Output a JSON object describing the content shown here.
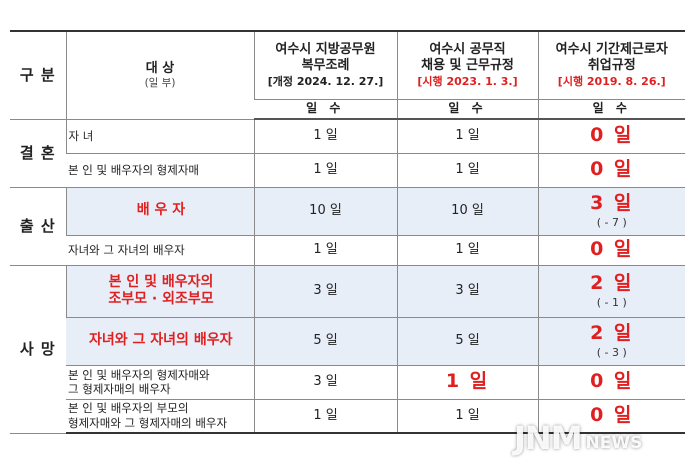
{
  "header": {
    "category_label": "구 분",
    "target_label": "대 상",
    "target_sub": "(일 부)",
    "col1": {
      "line1": "여수시 지방공무원",
      "line2": "복무조례",
      "bracket": "[개정 2024. 12. 27.]"
    },
    "col2": {
      "line1": "여수시 공무직",
      "line2": "채용 및 근무규정",
      "bracket": "[시행 2023. 1. 3.]"
    },
    "col3": {
      "line1": "여수시 기간제근로자",
      "line2": "취업규정",
      "bracket": "[시행 2019. 8. 26.]"
    },
    "days_label": "일 수"
  },
  "categories": {
    "marriage": "결 혼",
    "birth": "출 산",
    "death": "사 망"
  },
  "rows": [
    {
      "target": "자 녀",
      "c1": "1 일",
      "c2": "1 일",
      "c3": "0 일",
      "c3_change": ""
    },
    {
      "target": "본 인 및 배우자의 형제자매",
      "c1": "1 일",
      "c2": "1 일",
      "c3": "0 일",
      "c3_change": ""
    },
    {
      "target": "배 우 자",
      "c1": "10 일",
      "c2": "10 일",
      "c3": "3 일",
      "c3_change": "( - 7 )"
    },
    {
      "target": "자녀와 그 자녀의 배우자",
      "c1": "1 일",
      "c2": "1 일",
      "c3": "0 일",
      "c3_change": ""
    },
    {
      "target_line1": "본 인 및 배우자의",
      "target_line2": "조부모 · 외조부모",
      "c1": "3 일",
      "c2": "3 일",
      "c3": "2 일",
      "c3_change": "( - 1 )"
    },
    {
      "target": "자녀와 그 자녀의 배우자",
      "c1": "5 일",
      "c2": "5 일",
      "c3": "2 일",
      "c3_change": "( - 3 )"
    },
    {
      "target_line1": "본 인 및 배우자의 형제자매와",
      "target_line2": "그 형제자매의 배우자",
      "c1": "3 일",
      "c2": "1 일",
      "c3": "0 일",
      "c3_change": ""
    },
    {
      "target_line1": "본 인 및 배우자의 부모의",
      "target_line2": "형제자매와 그 형제자매의 배우자",
      "c1": "1 일",
      "c2": "1 일",
      "c3": "0 일",
      "c3_change": ""
    }
  ],
  "watermark": {
    "main": "JNM",
    "sub": "NEWS"
  }
}
